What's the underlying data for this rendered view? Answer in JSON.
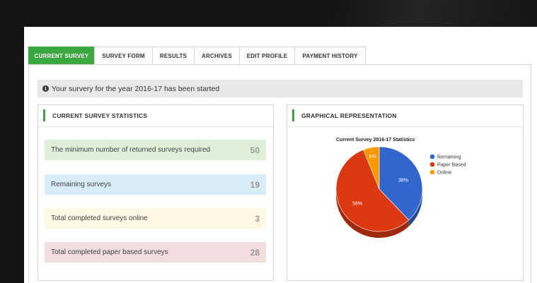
{
  "tabs": [
    {
      "label": "CURRENT SURVEY",
      "active": true
    },
    {
      "label": "SURVEY FORM",
      "active": false
    },
    {
      "label": "RESULTS",
      "active": false
    },
    {
      "label": "ARCHIVES",
      "active": false
    },
    {
      "label": "EDIT PROFILE",
      "active": false
    },
    {
      "label": "PAYMENT HISTORY",
      "active": false
    }
  ],
  "alert": {
    "icon": "info-circle-icon",
    "text": "Your survery for the year 2016-17 has been started"
  },
  "stats_panel": {
    "title": "CURRENT SURVEY STATISTICS",
    "items": [
      {
        "label": "The minimum number of returned surveys required",
        "value": "50",
        "color": "#dff0d8"
      },
      {
        "label": "Remaining surveys",
        "value": "19",
        "color": "#d9edf7"
      },
      {
        "label": "Total completed surveys online",
        "value": "3",
        "color": "#fcf8e3"
      },
      {
        "label": "Total completed paper based surveys",
        "value": "28",
        "color": "#f2dede"
      }
    ]
  },
  "graph_panel": {
    "title": "GRAPHICAL REPRESENTATION"
  },
  "chart_data": {
    "type": "pie",
    "title": "Current Survey 2016-17 Statistics",
    "legend_position": "right",
    "slices": [
      {
        "name": "Remaining",
        "value": 38,
        "label": "38%",
        "color": "#3366cc"
      },
      {
        "name": "Paper Based",
        "value": 56,
        "label": "56%",
        "color": "#dc3912"
      },
      {
        "name": "Online",
        "value": 6,
        "label": "6%",
        "color": "#ff9900"
      }
    ]
  },
  "colors": {
    "accent": "#3aa83f"
  }
}
